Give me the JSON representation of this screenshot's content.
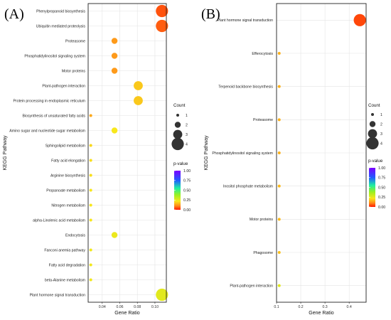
{
  "chart_data": [
    {
      "panel_label": "(A)",
      "type": "scatter",
      "xlabel": "Gene Ratio",
      "ylabel": "KEGG Pathway",
      "xlim": [
        0.024,
        0.113
      ],
      "xticks": [
        0.04,
        0.06,
        0.08,
        0.1
      ],
      "xtick_labels": [
        "0.04",
        "0.06",
        "0.08",
        "0.10"
      ],
      "size_legend": {
        "title": "Count",
        "labels": [
          "1",
          "2",
          "3",
          "4"
        ],
        "values": [
          1,
          2,
          3,
          4
        ]
      },
      "color_legend": {
        "title": "p-value",
        "labels": [
          "1.00",
          "0.75",
          "0.50",
          "0.25",
          "0.00"
        ],
        "values": [
          1.0,
          0.75,
          0.5,
          0.25,
          0.0
        ]
      },
      "points": [
        {
          "pathway": "Phenylpropanoid biosynthesis",
          "gene_ratio": 0.108,
          "count": 4,
          "pvalue": 0.05
        },
        {
          "pathway": "Ubiquitin mediated proteolysis",
          "gene_ratio": 0.108,
          "count": 4,
          "pvalue": 0.06
        },
        {
          "pathway": "Proteasome",
          "gene_ratio": 0.054,
          "count": 2,
          "pvalue": 0.12
        },
        {
          "pathway": "Phosphatidylinositol signaling system",
          "gene_ratio": 0.054,
          "count": 2,
          "pvalue": 0.12
        },
        {
          "pathway": "Motor proteins",
          "gene_ratio": 0.054,
          "count": 2,
          "pvalue": 0.12
        },
        {
          "pathway": "Plant-pathogen interaction",
          "gene_ratio": 0.081,
          "count": 3,
          "pvalue": 0.18
        },
        {
          "pathway": "Protein processing in endoplasmic reticulum",
          "gene_ratio": 0.081,
          "count": 3,
          "pvalue": 0.18
        },
        {
          "pathway": "Biosynthesis of unsaturated fatty acids",
          "gene_ratio": 0.027,
          "count": 1,
          "pvalue": 0.14
        },
        {
          "pathway": "Amino sugar and nucleotide sugar metabolism",
          "gene_ratio": 0.054,
          "count": 2,
          "pvalue": 0.22
        },
        {
          "pathway": "Sphingolipid metabolism",
          "gene_ratio": 0.027,
          "count": 1,
          "pvalue": 0.2
        },
        {
          "pathway": "Fatty acid elongation",
          "gene_ratio": 0.027,
          "count": 1,
          "pvalue": 0.21
        },
        {
          "pathway": "Arginine biosynthesis",
          "gene_ratio": 0.027,
          "count": 1,
          "pvalue": 0.21
        },
        {
          "pathway": "Propanoate metabolism",
          "gene_ratio": 0.027,
          "count": 1,
          "pvalue": 0.22
        },
        {
          "pathway": "Nitrogen metabolism",
          "gene_ratio": 0.027,
          "count": 1,
          "pvalue": 0.22
        },
        {
          "pathway": "alpha-Linolenic acid metabolism",
          "gene_ratio": 0.027,
          "count": 1,
          "pvalue": 0.22
        },
        {
          "pathway": "Endocytosis",
          "gene_ratio": 0.054,
          "count": 2,
          "pvalue": 0.24
        },
        {
          "pathway": "Fanconi anemia pathway",
          "gene_ratio": 0.027,
          "count": 1,
          "pvalue": 0.23
        },
        {
          "pathway": "Fatty acid degradation",
          "gene_ratio": 0.027,
          "count": 1,
          "pvalue": 0.23
        },
        {
          "pathway": "beta-Alanine metabolism",
          "gene_ratio": 0.027,
          "count": 1,
          "pvalue": 0.23
        },
        {
          "pathway": "Plant hormone signal transduction",
          "gene_ratio": 0.108,
          "count": 4,
          "pvalue": 0.26
        }
      ]
    },
    {
      "panel_label": "(B)",
      "type": "scatter",
      "xlabel": "Gene Ratio",
      "ylabel": "KEGG Pathway",
      "xlim": [
        0.1,
        0.47
      ],
      "xticks": [
        0.1,
        0.2,
        0.3,
        0.4
      ],
      "xtick_labels": [
        "0.1",
        "0.2",
        "0.3",
        "0.4"
      ],
      "size_legend": {
        "title": "Count",
        "labels": [
          "1",
          "2",
          "3",
          "4"
        ],
        "values": [
          1,
          2,
          3,
          4
        ]
      },
      "color_legend": {
        "title": "p-value",
        "labels": [
          "1.00",
          "0.75",
          "0.50",
          "0.25",
          "0.00"
        ],
        "values": [
          1.0,
          0.75,
          0.5,
          0.25,
          0.0
        ]
      },
      "points": [
        {
          "pathway": "Plant hormone signal transduction",
          "gene_ratio": 0.444,
          "count": 4,
          "pvalue": 0.04
        },
        {
          "pathway": "Efferocytosis",
          "gene_ratio": 0.111,
          "count": 1,
          "pvalue": 0.15
        },
        {
          "pathway": "Terpenoid backbone biosynthesis",
          "gene_ratio": 0.111,
          "count": 1,
          "pvalue": 0.15
        },
        {
          "pathway": "Proteasome",
          "gene_ratio": 0.111,
          "count": 1,
          "pvalue": 0.15
        },
        {
          "pathway": "Phosphatidylinositol signaling system",
          "gene_ratio": 0.111,
          "count": 1,
          "pvalue": 0.15
        },
        {
          "pathway": "Inositol phosphate metabolism",
          "gene_ratio": 0.111,
          "count": 1,
          "pvalue": 0.16
        },
        {
          "pathway": "Motor proteins",
          "gene_ratio": 0.111,
          "count": 1,
          "pvalue": 0.16
        },
        {
          "pathway": "Phagosome",
          "gene_ratio": 0.111,
          "count": 1,
          "pvalue": 0.17
        },
        {
          "pathway": "Plant-pathogen interaction",
          "gene_ratio": 0.111,
          "count": 1,
          "pvalue": 0.26
        }
      ]
    }
  ]
}
